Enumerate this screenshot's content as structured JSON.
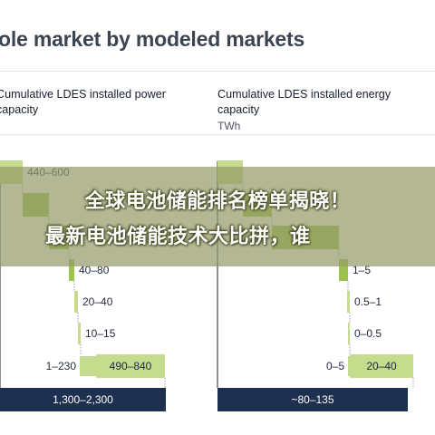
{
  "header": {
    "title": "ole market by modeled markets"
  },
  "banner": {
    "line1": "全球电池储能排名榜单揭晓！",
    "line2": "最新电池储能技术大比拼，谁"
  },
  "colors": {
    "dark_navy": "#1e3050",
    "green_light": "#c5dc8e",
    "green_mid": "#9cc34e",
    "green_dark": "#7ab03a",
    "axis": "#3a4658",
    "overlay": "#969b69"
  },
  "chart_data": [
    {
      "type": "bar",
      "variant": "waterfall",
      "title": "Cumulative LDES installed power\ncapacity",
      "unit": "",
      "bars": [
        {
          "label": "440–600",
          "shade": "light"
        },
        {
          "label": "",
          "shade": "mid"
        },
        {
          "label": "",
          "shade": "mid"
        },
        {
          "label": "40–80",
          "shade": "mid"
        },
        {
          "label": "20–40",
          "shade": "light"
        },
        {
          "label": "10–15",
          "shade": "light"
        },
        {
          "label": "490–840",
          "shade": "light",
          "prefix_label": "1–230"
        },
        {
          "label": "1,300–2,300",
          "shade": "total"
        }
      ]
    },
    {
      "type": "bar",
      "variant": "waterfall",
      "title": "Cumulative LDES installed energy\ncapacity",
      "unit": "TWh",
      "bars": [
        {
          "label": "",
          "shade": "light"
        },
        {
          "label": "",
          "shade": "mid"
        },
        {
          "label": "",
          "shade": "mid"
        },
        {
          "label": "1–5",
          "shade": "mid"
        },
        {
          "label": "0.5–1",
          "shade": "light"
        },
        {
          "label": "0–0.5",
          "shade": "light"
        },
        {
          "label": "20–40",
          "shade": "light",
          "prefix_label": "0–5"
        },
        {
          "label": "~80–135",
          "shade": "total"
        }
      ]
    }
  ]
}
